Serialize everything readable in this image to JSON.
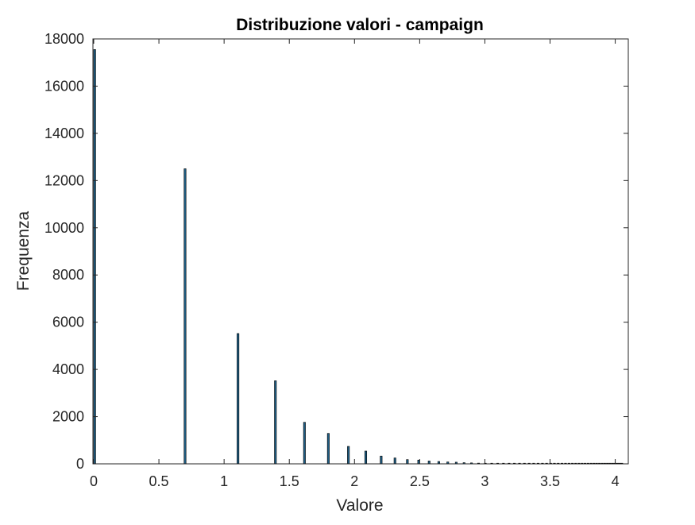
{
  "chart_data": {
    "type": "bar",
    "title": "Distribuzione valori - campaign",
    "xlabel": "Valore",
    "ylabel": "Frequenza",
    "xlim": [
      0,
      4.1
    ],
    "ylim": [
      0,
      18000
    ],
    "grid": false,
    "legend": "none",
    "bar_color": "#1f5f86",
    "bar_edge_color": "#000000",
    "x_ticks": [
      {
        "value": 0,
        "label": "0"
      },
      {
        "value": 0.5,
        "label": "0.5"
      },
      {
        "value": 1,
        "label": "1"
      },
      {
        "value": 1.5,
        "label": "1.5"
      },
      {
        "value": 2,
        "label": "2"
      },
      {
        "value": 2.5,
        "label": "2.5"
      },
      {
        "value": 3,
        "label": "3"
      },
      {
        "value": 3.5,
        "label": "3.5"
      },
      {
        "value": 4,
        "label": "4"
      }
    ],
    "y_ticks": [
      {
        "value": 0,
        "label": "0"
      },
      {
        "value": 2000,
        "label": "2000"
      },
      {
        "value": 4000,
        "label": "4000"
      },
      {
        "value": 6000,
        "label": "6000"
      },
      {
        "value": 8000,
        "label": "8000"
      },
      {
        "value": 10000,
        "label": "10000"
      },
      {
        "value": 12000,
        "label": "12000"
      },
      {
        "value": 14000,
        "label": "14000"
      },
      {
        "value": 16000,
        "label": "16000"
      },
      {
        "value": 18000,
        "label": "18000"
      }
    ],
    "bin_width": 0.015,
    "x": [
      0,
      0.693,
      1.099,
      1.386,
      1.609,
      1.792,
      1.946,
      2.079,
      2.197,
      2.303,
      2.398,
      2.485,
      2.565,
      2.639,
      2.708,
      2.773,
      2.833,
      2.89,
      2.944,
      2.996,
      3.045,
      3.091,
      3.135,
      3.178,
      3.219,
      3.258,
      3.296,
      3.332,
      3.367,
      3.401,
      3.434,
      3.466,
      3.497,
      3.526,
      3.555,
      3.584,
      3.611,
      3.638,
      3.664,
      3.689,
      3.714,
      3.738,
      3.761,
      3.784,
      3.807,
      3.829,
      3.85,
      3.871,
      3.892,
      3.912,
      3.932,
      3.951,
      3.97,
      3.989,
      4.007,
      4.025,
      4.043
    ],
    "values": [
      17550,
      12500,
      5520,
      3520,
      1760,
      1290,
      740,
      540,
      330,
      250,
      180,
      160,
      120,
      100,
      80,
      70,
      50,
      40,
      30,
      25,
      20,
      15,
      12,
      10,
      9,
      8,
      7,
      6,
      5,
      5,
      4,
      4,
      3,
      3,
      3,
      2,
      2,
      2,
      2,
      2,
      1,
      1,
      1,
      1,
      1,
      1,
      1,
      1,
      1,
      1,
      1,
      1,
      1,
      1,
      1,
      1,
      1
    ]
  }
}
